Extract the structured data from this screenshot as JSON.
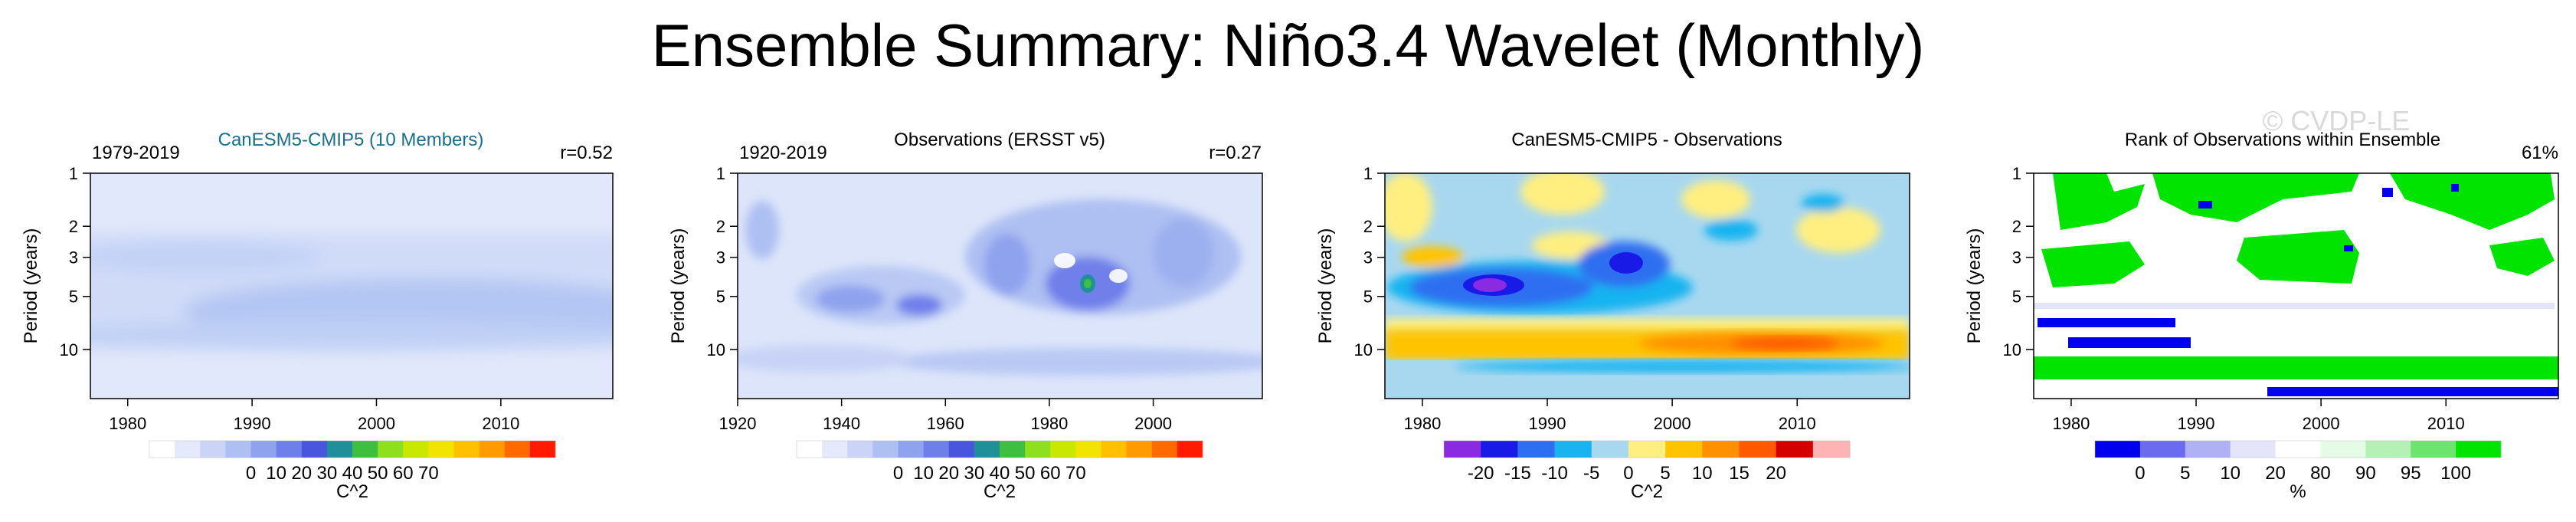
{
  "title": "Ensemble Summary: Niño3.4 Wavelet (Monthly)",
  "watermark": "© CVDP-LE",
  "chart_data": [
    {
      "type": "heatmap",
      "id": "panel1",
      "left_label": "1979-2019",
      "center_title": "CanESM5-CMIP5 (10 Members)",
      "center_title_color": "#1a6f8a",
      "right_label": "r=0.52",
      "ylabel": "Period (years)",
      "yticks": [
        1,
        2,
        3,
        5,
        10
      ],
      "xlim": [
        1977,
        2019
      ],
      "xticks": [
        1980,
        1990,
        2000,
        2010
      ],
      "colorbar": {
        "labels": [
          "0",
          "10",
          "20",
          "30",
          "40",
          "50",
          "60",
          "70"
        ],
        "unit": "C^2",
        "colors": [
          "#ffffff",
          "#e4e9fb",
          "#c9d4f7",
          "#aebff2",
          "#8fa2ee",
          "#6f7fe9",
          "#4a55de",
          "#1f8f9a",
          "#3fbf3f",
          "#8ee01f",
          "#c8e800",
          "#f1e400",
          "#ffc000",
          "#ff9a00",
          "#ff6a00",
          "#ff1a00"
        ]
      }
    },
    {
      "type": "heatmap",
      "id": "panel2",
      "left_label": "1920-2019",
      "center_title": "Observations (ERSST v5)",
      "center_title_color": "#000000",
      "right_label": "r=0.27",
      "ylabel": "Period (years)",
      "yticks": [
        1,
        2,
        3,
        5,
        10
      ],
      "xlim": [
        1920,
        2021
      ],
      "xticks": [
        1920,
        1940,
        1960,
        1980,
        2000
      ],
      "colorbar": {
        "labels": [
          "0",
          "10",
          "20",
          "30",
          "40",
          "50",
          "60",
          "70"
        ],
        "unit": "C^2",
        "colors": [
          "#ffffff",
          "#e4e9fb",
          "#c9d4f7",
          "#aebff2",
          "#8fa2ee",
          "#6f7fe9",
          "#4a55de",
          "#1f8f9a",
          "#3fbf3f",
          "#8ee01f",
          "#c8e800",
          "#f1e400",
          "#ffc000",
          "#ff9a00",
          "#ff6a00",
          "#ff1a00"
        ]
      }
    },
    {
      "type": "heatmap",
      "id": "panel3",
      "left_label": "",
      "center_title": "CanESM5-CMIP5 - Observations",
      "center_title_color": "#000000",
      "right_label": "",
      "ylabel": "Period (years)",
      "yticks": [
        1,
        2,
        3,
        5,
        10
      ],
      "xlim": [
        1977,
        2019
      ],
      "xticks": [
        1980,
        1990,
        2000,
        2010
      ],
      "colorbar": {
        "labels": [
          "-20",
          "-15",
          "-10",
          "-5",
          "0",
          "5",
          "10",
          "15",
          "20"
        ],
        "unit": "C^2",
        "colors": [
          "#8a2be2",
          "#1a1ae6",
          "#2e6ef0",
          "#19b4f0",
          "#a8d8f0",
          "#ffef80",
          "#ffc400",
          "#ff9000",
          "#ff5a00",
          "#d40000",
          "#ffb3b3"
        ]
      }
    },
    {
      "type": "heatmap",
      "id": "panel4",
      "left_label": "",
      "center_title": "Rank of Observations within Ensemble",
      "center_title_color": "#000000",
      "right_label": "61%",
      "ylabel": "Period (years)",
      "yticks": [
        1,
        2,
        3,
        5,
        10
      ],
      "xlim": [
        1977,
        2019
      ],
      "xticks": [
        1980,
        1990,
        2000,
        2010
      ],
      "colorbar": {
        "labels": [
          "0",
          "5",
          "10",
          "20",
          "80",
          "90",
          "95",
          "100"
        ],
        "unit": "%",
        "colors": [
          "#0000ee",
          "#6b6bf0",
          "#b0b0f5",
          "#e4e4fb",
          "#ffffff",
          "#e6fbe6",
          "#b5f0b5",
          "#6de46d",
          "#00e400"
        ]
      }
    }
  ]
}
